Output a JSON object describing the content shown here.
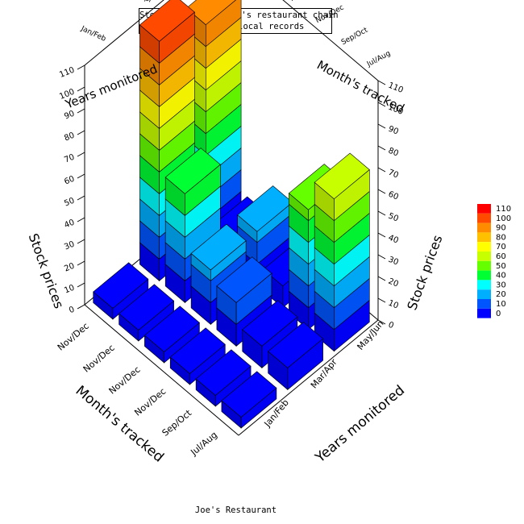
{
  "chart_data": {
    "type": "bar3d",
    "title": "Stock prices for Joe's restaurant chain",
    "subtitle": "Compiled from local records",
    "footer": "Joe's Restaurant",
    "zlabel": "Stock prices",
    "ylabel": "Month's tracked",
    "xlabel": "Years monitored",
    "zlim": [
      0,
      110
    ],
    "zticks": [
      "0",
      "10",
      "20",
      "30",
      "40",
      "50",
      "60",
      "70",
      "80",
      "90",
      "100",
      "110"
    ],
    "rows": [
      "Jul/Aug",
      "Sep/Oct",
      "Nov/Dec",
      "Nov/Dec",
      "Nov/Dec",
      "Nov/Dec"
    ],
    "cols": [
      "Jan/Feb",
      "Mar/Apr",
      "May/Jun"
    ],
    "values": [
      [
        5,
        10,
        70
      ],
      [
        5,
        10,
        55
      ],
      [
        5,
        20,
        10
      ],
      [
        5,
        25,
        25
      ],
      [
        5,
        50,
        10
      ],
      [
        5,
        110,
        100
      ]
    ],
    "legend": {
      "position": "right",
      "levels": [
        "110",
        "100",
        "90",
        "80",
        "70",
        "60",
        "50",
        "40",
        "30",
        "20",
        "10",
        "0"
      ],
      "colors": [
        "#ff0000",
        "#ff4a00",
        "#ff8c00",
        "#ffc000",
        "#ffff00",
        "#c8ff00",
        "#66ff00",
        "#00ff33",
        "#00ffff",
        "#00b0ff",
        "#0055ff",
        "#0000ff"
      ]
    }
  }
}
